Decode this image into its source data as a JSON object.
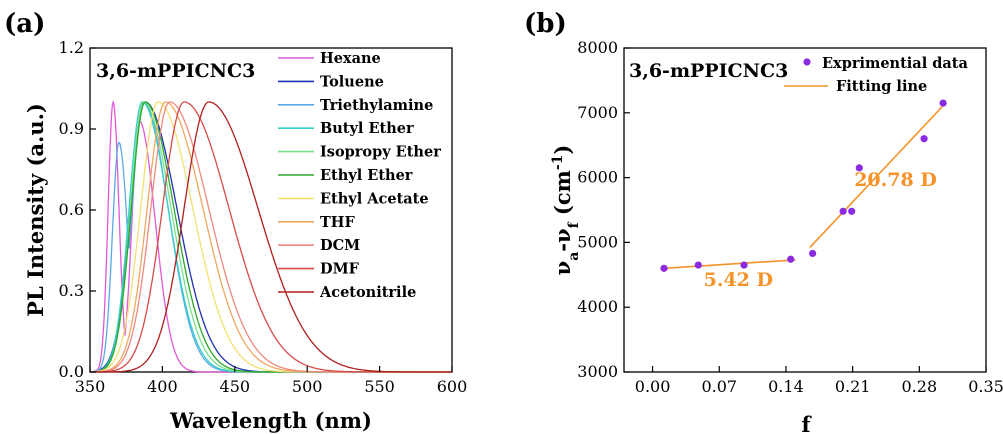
{
  "chart_data": [
    {
      "panel_label": "(a)",
      "type": "line",
      "title": "3,6-mPPICNC3",
      "xlabel": "Wavelength (nm)",
      "ylabel": "PL Intensity (a.u.)",
      "xlim": [
        350,
        600
      ],
      "ylim": [
        0,
        1.2
      ],
      "xticks": [
        350,
        400,
        450,
        500,
        550,
        600
      ],
      "yticks": [
        0.0,
        0.3,
        0.6,
        0.9,
        1.2
      ],
      "ytick_labels": [
        "0.0",
        "0.3",
        "0.6",
        "0.9",
        "1.2"
      ],
      "grid": false,
      "legend_position": "top-right",
      "series": [
        {
          "name": "Hexane",
          "color": "#e05ad6",
          "peak": 366,
          "sigma_left": 3.5,
          "sigma_right": 4.0,
          "shoulders": [
            {
              "center": 384,
              "height": 0.93,
              "sigma_left": 5.0,
              "sigma_right": 11.0
            }
          ]
        },
        {
          "name": "Toluene",
          "color": "#1f2fb0",
          "peak": 388,
          "sigma_left": 10.0,
          "sigma_right": 22.0
        },
        {
          "name": "Triethylamine",
          "color": "#5aa8e8",
          "peak": 370,
          "height": 0.85,
          "sigma_left": 4.5,
          "sigma_right": 6.0,
          "shoulders": [
            {
              "center": 387,
              "height": 1.0,
              "sigma_left": 8.0,
              "sigma_right": 17.0
            }
          ]
        },
        {
          "name": "Butyl Ether",
          "color": "#35d0c8",
          "peak": 386,
          "sigma_left": 9.0,
          "sigma_right": 18.0
        },
        {
          "name": "Isopropy Ether",
          "color": "#78e08a",
          "peak": 387,
          "sigma_left": 9.0,
          "sigma_right": 19.0
        },
        {
          "name": "Ethyl Ether",
          "color": "#2ca82c",
          "peak": 388,
          "sigma_left": 9.5,
          "sigma_right": 20.0
        },
        {
          "name": "Ethyl Acetate",
          "color": "#f2e070",
          "peak": 397,
          "sigma_left": 12.0,
          "sigma_right": 24.0
        },
        {
          "name": "THF",
          "color": "#f0a860",
          "peak": 402,
          "sigma_left": 12.5,
          "sigma_right": 26.0
        },
        {
          "name": "DCM",
          "color": "#ee8a80",
          "peak": 405,
          "sigma_left": 13.0,
          "sigma_right": 27.0
        },
        {
          "name": "DMF",
          "color": "#d84a4a",
          "peak": 415,
          "sigma_left": 15.0,
          "sigma_right": 31.0
        },
        {
          "name": "Acetonitrile",
          "color": "#b01e1e",
          "peak": 432,
          "sigma_left": 17.0,
          "sigma_right": 34.0
        }
      ]
    },
    {
      "panel_label": "(b)",
      "type": "scatter",
      "title": "3,6-mPPICNC3",
      "xlabel": "f",
      "ylabel_main": "ν",
      "ylabel_sub_a": "a",
      "ylabel_dash": "-ν",
      "ylabel_sub_f": "f",
      "ylabel_unit": " (cm",
      "ylabel_exp": "-1",
      "ylabel_close": ")",
      "xlim": [
        -0.03,
        0.35
      ],
      "ylim": [
        3000,
        8000
      ],
      "xticks": [
        0.0,
        0.07,
        0.14,
        0.21,
        0.28,
        0.35
      ],
      "xtick_labels": [
        "0.00",
        "0.07",
        "0.14",
        "0.21",
        "0.28",
        "0.35"
      ],
      "yticks": [
        3000,
        4000,
        5000,
        6000,
        7000,
        8000
      ],
      "grid": false,
      "legend_position": "top-right",
      "points_color": "#8a2be2",
      "fit_color": "#f5932a",
      "series": [
        {
          "name": "Exprimential data",
          "x": [
            0.012,
            0.048,
            0.096,
            0.145,
            0.168,
            0.2,
            0.209,
            0.217,
            0.285,
            0.305
          ],
          "y": [
            4600,
            4650,
            4650,
            4740,
            4830,
            5480,
            5480,
            6150,
            6600,
            7150
          ]
        },
        {
          "name": "Fitting line",
          "segments": [
            {
              "x": [
                0.012,
                0.15
              ],
              "y": [
                4600,
                4730
              ]
            },
            {
              "x": [
                0.165,
                0.305
              ],
              "y": [
                4920,
                7110
              ]
            }
          ]
        }
      ],
      "annotations": [
        {
          "text": "5.42 D",
          "x": 0.09,
          "y": 4330
        },
        {
          "text": "20.78 D",
          "x": 0.255,
          "y": 5870
        }
      ]
    }
  ]
}
